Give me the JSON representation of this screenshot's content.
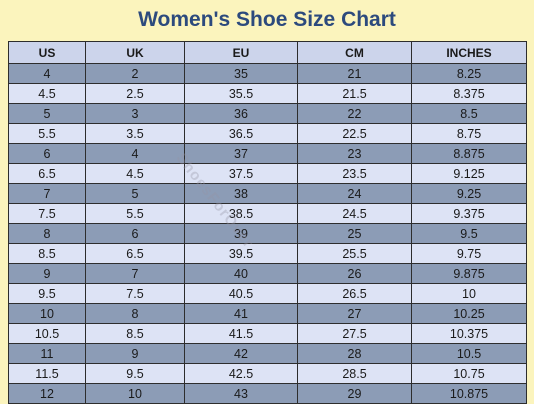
{
  "title": "Women's Shoe Size Chart",
  "watermark": "ShoesForOver",
  "colors": {
    "title": "#2c4a7d",
    "background": "#fbf4bd",
    "row_dark": "#8c9cb6",
    "row_light": "#dde3f5",
    "header": "#ccd4eb"
  },
  "table": {
    "headers": [
      "US",
      "UK",
      "EU",
      "CM",
      "INCHES"
    ],
    "rows": [
      [
        "4",
        "2",
        "35",
        "21",
        "8.25"
      ],
      [
        "4.5",
        "2.5",
        "35.5",
        "21.5",
        "8.375"
      ],
      [
        "5",
        "3",
        "36",
        "22",
        "8.5"
      ],
      [
        "5.5",
        "3.5",
        "36.5",
        "22.5",
        "8.75"
      ],
      [
        "6",
        "4",
        "37",
        "23",
        "8.875"
      ],
      [
        "6.5",
        "4.5",
        "37.5",
        "23.5",
        "9.125"
      ],
      [
        "7",
        "5",
        "38",
        "24",
        "9.25"
      ],
      [
        "7.5",
        "5.5",
        "38.5",
        "24.5",
        "9.375"
      ],
      [
        "8",
        "6",
        "39",
        "25",
        "9.5"
      ],
      [
        "8.5",
        "6.5",
        "39.5",
        "25.5",
        "9.75"
      ],
      [
        "9",
        "7",
        "40",
        "26",
        "9.875"
      ],
      [
        "9.5",
        "7.5",
        "40.5",
        "26.5",
        "10"
      ],
      [
        "10",
        "8",
        "41",
        "27",
        "10.25"
      ],
      [
        "10.5",
        "8.5",
        "41.5",
        "27.5",
        "10.375"
      ],
      [
        "11",
        "9",
        "42",
        "28",
        "10.5"
      ],
      [
        "11.5",
        "9.5",
        "42.5",
        "28.5",
        "10.75"
      ],
      [
        "12",
        "10",
        "43",
        "29",
        "10.875"
      ]
    ]
  }
}
